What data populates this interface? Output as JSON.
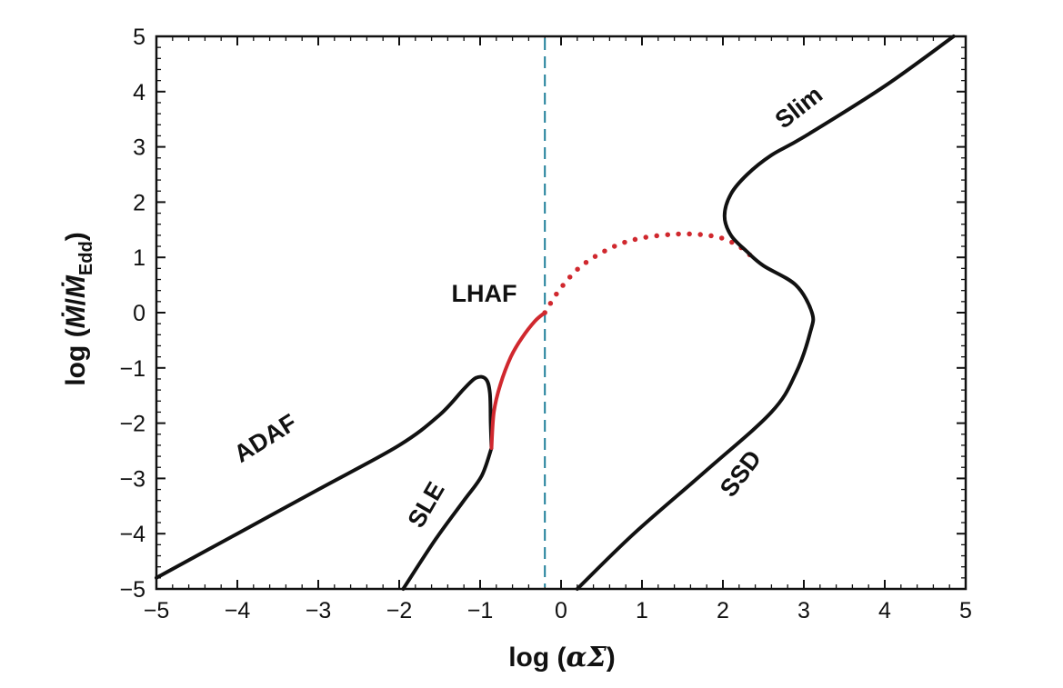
{
  "chart_data": {
    "type": "line",
    "xlabel_prefix": "log (",
    "xlabel_math": "αΣ",
    "xlabel_suffix": ")",
    "ylabel_prefix": "log (",
    "ylabel_mdot": "Ṁ",
    "ylabel_slash": "/",
    "ylabel_mdot2": "Ṁ",
    "ylabel_sub": "Edd",
    "ylabel_suffix": ")",
    "xlim": [
      -5,
      5
    ],
    "ylim": [
      -5,
      5
    ],
    "x_ticks": [
      -5,
      -4,
      -3,
      -2,
      -1,
      0,
      1,
      2,
      3,
      4,
      5
    ],
    "y_ticks": [
      -5,
      -4,
      -3,
      -2,
      -1,
      0,
      1,
      2,
      3,
      4,
      5
    ],
    "x_tick_labels": [
      "−5",
      "−4",
      "−3",
      "−2",
      "−1",
      "0",
      "1",
      "2",
      "3",
      "4",
      "5"
    ],
    "y_tick_labels": [
      "−5",
      "−4",
      "−3",
      "−2",
      "−1",
      "0",
      "1",
      "2",
      "3",
      "4",
      "5"
    ],
    "grid": false,
    "series": [
      {
        "name": "ADAF",
        "color": "#111111",
        "style": "solid",
        "points": [
          [
            -5.0,
            -4.8
          ],
          [
            -4.0,
            -4.0
          ],
          [
            -3.0,
            -3.2
          ],
          [
            -2.0,
            -2.4
          ],
          [
            -1.5,
            -1.85
          ],
          [
            -1.2,
            -1.38
          ],
          [
            -1.05,
            -1.18
          ],
          [
            -0.93,
            -1.2
          ],
          [
            -0.88,
            -1.45
          ],
          [
            -0.87,
            -2.0
          ],
          [
            -0.86,
            -2.45
          ]
        ]
      },
      {
        "name": "SLE",
        "color": "#111111",
        "style": "solid",
        "points": [
          [
            -1.95,
            -5.0
          ],
          [
            -1.55,
            -4.1
          ],
          [
            -1.2,
            -3.4
          ],
          [
            -0.98,
            -2.95
          ],
          [
            -0.86,
            -2.45
          ]
        ]
      },
      {
        "name": "LHAF",
        "color": "#d0282e",
        "style": "solid",
        "points": [
          [
            -0.86,
            -2.45
          ],
          [
            -0.83,
            -1.8
          ],
          [
            -0.75,
            -1.3
          ],
          [
            -0.62,
            -0.8
          ],
          [
            -0.48,
            -0.45
          ],
          [
            -0.32,
            -0.15
          ],
          [
            -0.2,
            0.0
          ]
        ]
      },
      {
        "name": "",
        "color": "#d0282e",
        "style": "dotted",
        "points": [
          [
            -0.2,
            0.0
          ],
          [
            0.0,
            0.45
          ],
          [
            0.3,
            0.9
          ],
          [
            0.8,
            1.28
          ],
          [
            1.4,
            1.42
          ],
          [
            1.9,
            1.38
          ],
          [
            2.2,
            1.2
          ],
          [
            2.4,
            0.95
          ]
        ]
      },
      {
        "name": "SSD",
        "color": "#111111",
        "style": "solid",
        "points": [
          [
            0.2,
            -5.0
          ],
          [
            0.9,
            -4.0
          ],
          [
            1.8,
            -2.85
          ],
          [
            2.6,
            -1.8
          ],
          [
            2.9,
            -1.1
          ],
          [
            3.08,
            -0.35
          ],
          [
            3.1,
            0.0
          ],
          [
            2.9,
            0.5
          ],
          [
            2.5,
            0.85
          ],
          [
            2.3,
            1.1
          ],
          [
            2.1,
            1.4
          ],
          [
            2.02,
            1.75
          ],
          [
            2.1,
            2.15
          ],
          [
            2.3,
            2.5
          ],
          [
            2.6,
            2.85
          ],
          [
            3.0,
            3.18
          ],
          [
            4.0,
            4.1
          ],
          [
            4.85,
            5.0
          ]
        ]
      }
    ],
    "annotations": [
      {
        "text": "ADAF",
        "x": -3.6,
        "y": -2.4,
        "angle": -32,
        "anchor": "middle"
      },
      {
        "text": "SLE",
        "x": -1.58,
        "y": -3.55,
        "angle": -60,
        "anchor": "middle"
      },
      {
        "text": "LHAF",
        "x": -0.95,
        "y": 0.2,
        "angle": 0,
        "anchor": "middle"
      },
      {
        "text": "SSD",
        "x": 2.3,
        "y": -3.0,
        "angle": -53,
        "anchor": "middle"
      },
      {
        "text": "Slim",
        "x": 3.0,
        "y": 3.6,
        "angle": -38,
        "anchor": "middle"
      }
    ],
    "vline": {
      "x": -0.2,
      "color": "#1f7f9a",
      "style": "dashed"
    }
  }
}
